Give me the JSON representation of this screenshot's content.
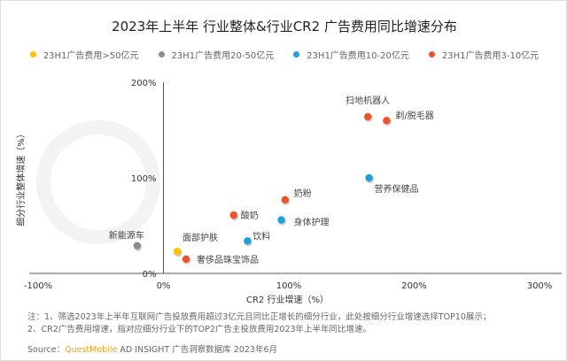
{
  "chart_data": {
    "type": "scatter",
    "title": "2023年上半年 行业整体&行业CR2 广告费用同比增速分布",
    "xlabel": "CR2 行业增速（%）",
    "ylabel": "细分行业整体增速（%）",
    "xlim": [
      -100,
      300
    ],
    "ylim": [
      0,
      200
    ],
    "x_ticks": [
      "-100%",
      "0%",
      "100%",
      "200%",
      "300%"
    ],
    "y_ticks": [
      "0%",
      "100%",
      "200%"
    ],
    "grid": false,
    "legend_position": "top",
    "series": [
      {
        "name": "23H1广告费用>50亿元",
        "color": "#FFC000",
        "points": [
          {
            "label": "面部护肤",
            "x": 11,
            "y": 23
          }
        ]
      },
      {
        "name": "23H1广告费用20-50亿元",
        "color": "#8C8C8C",
        "points": [
          {
            "label": "新能源车",
            "x": -21,
            "y": 29
          }
        ]
      },
      {
        "name": "23H1广告费用10-20亿元",
        "color": "#1FA0DC",
        "points": [
          {
            "label": "营养保健品",
            "x": 164,
            "y": 100
          },
          {
            "label": "身体护理",
            "x": 94,
            "y": 56
          },
          {
            "label": "饮料",
            "x": 67,
            "y": 34
          }
        ]
      },
      {
        "name": "23H1广告费用3-10亿元",
        "color": "#F0522A",
        "points": [
          {
            "label": "扫地机器人",
            "x": 163,
            "y": 164
          },
          {
            "label": "剃/脱毛器",
            "x": 178,
            "y": 160
          },
          {
            "label": "奶粉",
            "x": 97,
            "y": 77
          },
          {
            "label": "酸奶",
            "x": 56,
            "y": 61
          },
          {
            "label": "奢侈品珠宝饰品",
            "x": 18,
            "y": 15
          }
        ]
      }
    ]
  },
  "notes": {
    "line1": "注：1、筛选2023年上半年互联网广告投放费用超过3亿元且同比正增长的细分行业，此处按细分行业增速选择TOP10展示；",
    "line2": "2、CR2广告费用增速，指对应细分行业下的TOP2广告主投放费用2023年上半年同比增速。",
    "source_prefix": "Source：",
    "source_brand": "QuestMobile",
    "source_rest": " AD INSIGHT 广告洞察数据库 2023年6月"
  },
  "watermark": "QUEST MOBILE"
}
